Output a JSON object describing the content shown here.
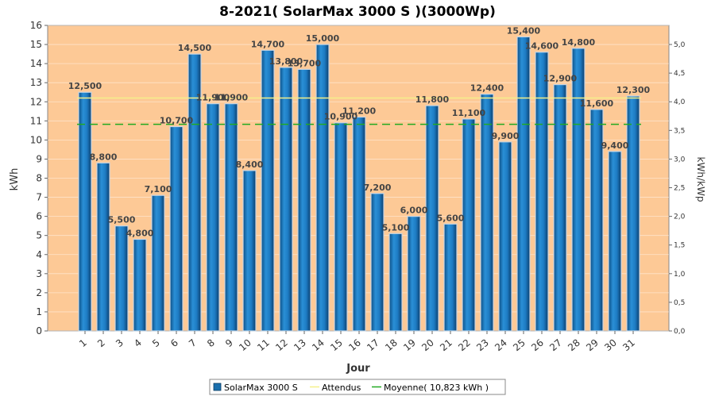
{
  "chart_data": {
    "type": "bar",
    "title": "8-2021( SolarMax 3000 S )(3000Wp)",
    "xlabel": "Jour",
    "ylabel": "kWh",
    "y2label": "kWh/kWp",
    "categories": [
      "1",
      "2",
      "3",
      "4",
      "5",
      "6",
      "7",
      "8",
      "9",
      "10",
      "11",
      "12",
      "13",
      "14",
      "15",
      "16",
      "17",
      "18",
      "19",
      "20",
      "21",
      "22",
      "23",
      "24",
      "25",
      "26",
      "27",
      "28",
      "29",
      "30",
      "31"
    ],
    "series": [
      {
        "name": "SolarMax 3000 S",
        "values": [
          12.5,
          8.8,
          5.5,
          4.8,
          7.1,
          10.7,
          14.5,
          11.9,
          11.9,
          8.4,
          14.7,
          13.8,
          13.7,
          15.0,
          10.9,
          11.2,
          7.2,
          5.1,
          6.0,
          11.8,
          5.6,
          11.1,
          12.4,
          9.9,
          15.4,
          14.6,
          12.9,
          14.8,
          11.6,
          9.4,
          12.3
        ],
        "labels": [
          "12,500",
          "8,800",
          "5,500",
          "4,800",
          "7,100",
          "10,700",
          "14,500",
          "11,900",
          "11,900",
          "8,400",
          "14,700",
          "13,800",
          "13,700",
          "15,000",
          "10,900",
          "11,200",
          "7,200",
          "5,100",
          "6,000",
          "11,800",
          "5,600",
          "11,100",
          "12,400",
          "9,900",
          "15,400",
          "14,600",
          "12,900",
          "14,800",
          "11,600",
          "9,400",
          "12,300"
        ],
        "color": "#1a6fad"
      }
    ],
    "expected": {
      "name": "Attendus",
      "value": 12.2,
      "color": "#f5f08a"
    },
    "average": {
      "name": "Moyenne( 10,823 kWh )",
      "value": 10.823,
      "color": "#22aa22"
    },
    "ylim": [
      0,
      16
    ],
    "yticks": [
      "0",
      "1",
      "2",
      "3",
      "4",
      "5",
      "6",
      "7",
      "8",
      "9",
      "10",
      "11",
      "12",
      "13",
      "14",
      "15",
      "16"
    ],
    "y2lim": [
      0,
      5.333
    ],
    "y2ticks": [
      "0,0",
      "0,5",
      "1,0",
      "1,5",
      "2,0",
      "2,5",
      "3,0",
      "3,5",
      "4,0",
      "4,5",
      "5,0"
    ],
    "plot_bg": "#fdc996",
    "grid": true,
    "legend_position": "bottom"
  }
}
